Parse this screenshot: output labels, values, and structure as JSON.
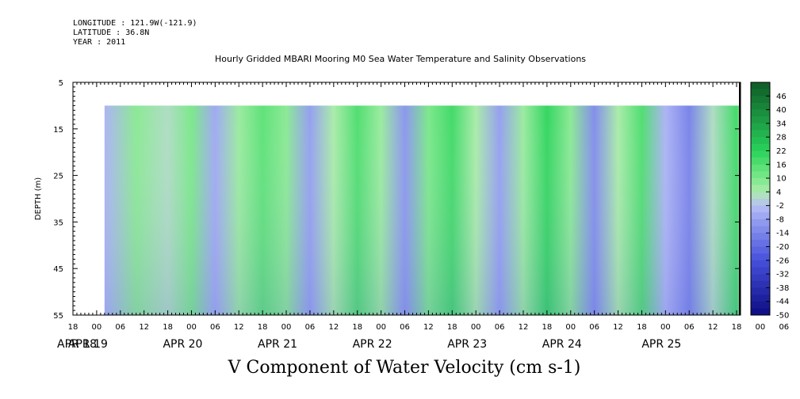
{
  "header": {
    "longitude": "LONGITUDE : 121.9W(-121.9)",
    "latitude": "LATITUDE : 36.8N",
    "year": "YEAR : 2011"
  },
  "colors": {
    "negative_low": "#aab2f4",
    "negative_high": "#0c0c82",
    "near_zero": "#a8eaa8",
    "positive_mid": "#5ee07a",
    "positive_high": "#0e5a26"
  },
  "chart_data": {
    "type": "heatmap",
    "title": "Hourly Gridded MBARI Mooring M0 Sea Water Temperature and Salinity Observations",
    "xlabel": "V Component of Water Velocity (cm s-1)",
    "ylabel": "DEPTH (m)",
    "y_ticks": [
      "5",
      "15",
      "25",
      "35",
      "45",
      "55"
    ],
    "ylim": [
      55,
      5
    ],
    "y_data_range": [
      10,
      55
    ],
    "x_hour_ticks": [
      "18",
      "00",
      "06",
      "12",
      "18",
      "00",
      "06",
      "12",
      "18",
      "00",
      "06",
      "12",
      "18",
      "00",
      "06",
      "12",
      "18",
      "00",
      "06",
      "12",
      "18",
      "00",
      "06",
      "12",
      "18",
      "00",
      "06",
      "12",
      "18",
      "00",
      "06",
      "12",
      "18"
    ],
    "x_date_labels": [
      "APR 18",
      "APR 19",
      "APR 20",
      "APR 21",
      "APR 22",
      "APR 23",
      "APR 24",
      "APR 25"
    ],
    "x_range": [
      "2011-04-18 18:00",
      "2011-04-25 19:00"
    ],
    "data_start": "2011-04-19 02:00",
    "colorbar_labels": [
      "46",
      "40",
      "34",
      "28",
      "22",
      "16",
      "10",
      "4",
      "-2",
      "-8",
      "-14",
      "-20",
      "-26",
      "-32",
      "-38",
      "-44",
      "-50"
    ],
    "colorbar_range": [
      -50,
      52
    ],
    "bands": [
      {
        "hour": 0,
        "v": -4
      },
      {
        "hour": 8,
        "v": 8
      },
      {
        "hour": 16,
        "v": 2
      },
      {
        "hour": 22,
        "v": 10
      },
      {
        "hour": 28,
        "v": -6
      },
      {
        "hour": 34,
        "v": 6
      },
      {
        "hour": 40,
        "v": 14
      },
      {
        "hour": 46,
        "v": 8
      },
      {
        "hour": 52,
        "v": -8
      },
      {
        "hour": 58,
        "v": 4
      },
      {
        "hour": 64,
        "v": 16
      },
      {
        "hour": 70,
        "v": 6
      },
      {
        "hour": 76,
        "v": -10
      },
      {
        "hour": 82,
        "v": 10
      },
      {
        "hour": 88,
        "v": 18
      },
      {
        "hour": 94,
        "v": 4
      },
      {
        "hour": 100,
        "v": -8
      },
      {
        "hour": 106,
        "v": 6
      },
      {
        "hour": 112,
        "v": 20
      },
      {
        "hour": 118,
        "v": 8
      },
      {
        "hour": 124,
        "v": -12
      },
      {
        "hour": 130,
        "v": 4
      },
      {
        "hour": 136,
        "v": 16
      },
      {
        "hour": 142,
        "v": -4
      },
      {
        "hour": 148,
        "v": -14
      },
      {
        "hour": 154,
        "v": 2
      },
      {
        "hour": 160,
        "v": 18
      },
      {
        "hour": 166,
        "v": 10
      },
      {
        "hour": 172,
        "v": -6
      },
      {
        "hour": 178,
        "v": 14
      }
    ]
  }
}
